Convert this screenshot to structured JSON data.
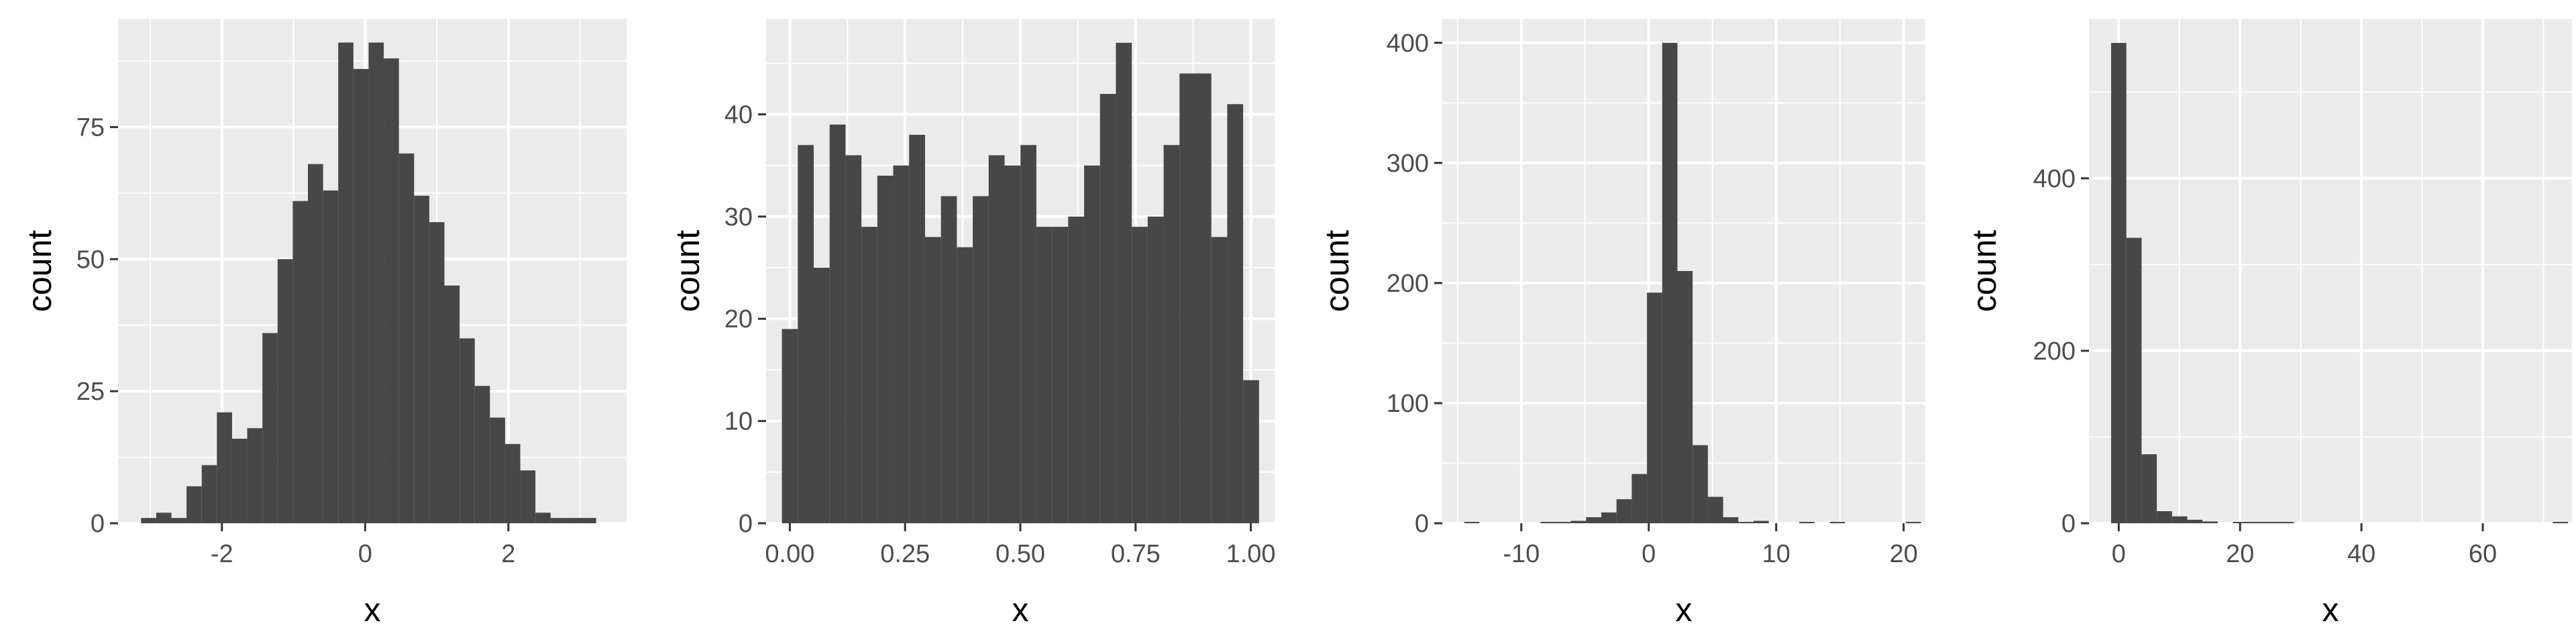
{
  "colors": {
    "panel_bg": "#ebebeb",
    "grid_major": "#ffffff",
    "bar_fill": "#474747",
    "tick_text": "#4d4d4d",
    "axis_title": "#000000"
  },
  "chart_data": [
    {
      "type": "histogram",
      "xlabel": "x",
      "ylabel": "count",
      "xlim": [
        -3.45,
        3.65
      ],
      "ylim": [
        0,
        95.5
      ],
      "grid": true,
      "x_ticks": [
        -2,
        0,
        2
      ],
      "x_tick_labels": [
        "-2",
        "0",
        "2"
      ],
      "y_ticks": [
        0,
        25,
        50,
        75
      ],
      "y_tick_labels": [
        "0",
        "25",
        "50",
        "75"
      ],
      "bin_start": -3.129,
      "bin_width": 0.2118,
      "counts": [
        1,
        2,
        1,
        7,
        11,
        21,
        16,
        18,
        36,
        50,
        61,
        68,
        63,
        91,
        86,
        91,
        88,
        70,
        62,
        57,
        45,
        35,
        26,
        20,
        15,
        10,
        2,
        1,
        1,
        1
      ]
    },
    {
      "type": "histogram",
      "xlabel": "x",
      "ylabel": "count",
      "xlim": [
        -0.0515,
        1.0515
      ],
      "ylim": [
        0,
        49.35
      ],
      "grid": true,
      "x_ticks": [
        0,
        0.25,
        0.5,
        0.75,
        1
      ],
      "x_tick_labels": [
        "0.00",
        "0.25",
        "0.50",
        "0.75",
        "1.00"
      ],
      "y_ticks": [
        0,
        10,
        20,
        30,
        40
      ],
      "y_tick_labels": [
        "0",
        "10",
        "20",
        "30",
        "40"
      ],
      "bin_start": -0.0172,
      "bin_width": 0.0345,
      "counts": [
        19,
        37,
        25,
        39,
        36,
        29,
        34,
        35,
        38,
        28,
        32,
        27,
        32,
        36,
        35,
        37,
        29,
        29,
        30,
        35,
        42,
        47,
        29,
        30,
        37,
        44,
        44,
        28,
        41,
        14
      ]
    },
    {
      "type": "histogram",
      "xlabel": "x",
      "ylabel": "count",
      "xlim": [
        -16.2,
        21.7
      ],
      "ylim": [
        0,
        420
      ],
      "grid": true,
      "x_ticks": [
        -10,
        0,
        10,
        20
      ],
      "x_tick_labels": [
        "-10",
        "0",
        "10",
        "20"
      ],
      "y_ticks": [
        0,
        100,
        200,
        300,
        400
      ],
      "y_tick_labels": [
        "0",
        "100",
        "200",
        "300",
        "400"
      ],
      "bin_start": -14.48,
      "bin_width": 1.195,
      "counts": [
        1,
        0,
        0,
        0,
        0,
        1,
        1,
        2,
        5,
        9,
        20,
        41,
        192,
        400,
        210,
        65,
        22,
        5,
        1,
        2,
        0,
        0,
        1,
        0,
        1,
        0,
        0,
        0,
        0,
        1
      ]
    },
    {
      "type": "histogram",
      "xlabel": "x",
      "ylabel": "count",
      "xlim": [
        -4.9,
        74.7
      ],
      "ylim": [
        0,
        585
      ],
      "grid": true,
      "x_ticks": [
        0,
        20,
        40,
        60
      ],
      "x_tick_labels": [
        "0",
        "20",
        "40",
        "60"
      ],
      "y_ticks": [
        0,
        200,
        400
      ],
      "y_tick_labels": [
        "0",
        "200",
        "400"
      ],
      "bin_start": -1.25,
      "bin_width": 2.51,
      "counts": [
        557,
        331,
        80,
        14,
        8,
        4,
        2,
        0,
        1,
        1,
        1,
        1,
        0,
        0,
        0,
        0,
        0,
        0,
        0,
        0,
        0,
        0,
        0,
        0,
        0,
        0,
        0,
        0,
        0,
        1
      ]
    }
  ]
}
